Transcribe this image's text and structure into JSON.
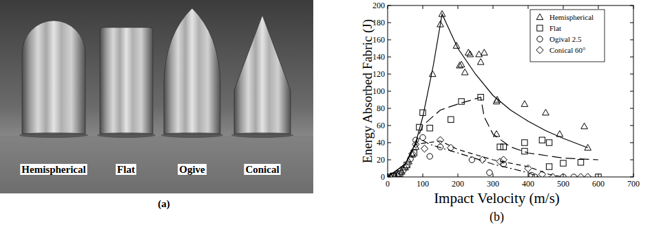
{
  "chart_data": {
    "type": "scatter",
    "x_label": "Impact Velocity (m/s)",
    "y_label": "Energy Absorbed Fabric (J)",
    "caption": "(b)",
    "xlim": [
      0,
      700
    ],
    "xticks": [
      0,
      100,
      200,
      300,
      400,
      500,
      600,
      700
    ],
    "ylim": [
      0,
      200
    ],
    "yticks": [
      0,
      20,
      40,
      60,
      80,
      100,
      120,
      140,
      160,
      180,
      200
    ],
    "grid": false,
    "legend": "upper right",
    "series": [
      {
        "name": "Hemispherical",
        "type": "scatter",
        "marker": "triangle",
        "color": "#000000",
        "x": [
          0,
          10,
          20,
          30,
          40,
          50,
          60,
          70,
          80,
          128,
          150,
          155,
          196,
          205,
          210,
          220,
          230,
          235,
          260,
          265,
          275,
          310,
          312,
          310,
          390,
          450,
          490,
          560,
          570
        ],
        "values": [
          0,
          0,
          1,
          3,
          6,
          11,
          18,
          26,
          35,
          120,
          178,
          190,
          153,
          130,
          131,
          122,
          145,
          143,
          143,
          134,
          145,
          88,
          90,
          50,
          85,
          75,
          50,
          59,
          34
        ]
      },
      {
        "name": "Flat",
        "type": "scatter",
        "marker": "square",
        "color": "#000000",
        "x": [
          15,
          35,
          55,
          75,
          90,
          100,
          120,
          180,
          210,
          265,
          320,
          330,
          390,
          390,
          440,
          460,
          460,
          500,
          550,
          600
        ],
        "values": [
          1,
          4,
          14,
          28,
          58,
          75,
          57,
          67,
          88,
          93,
          35,
          35,
          40,
          30,
          43,
          40,
          12,
          16,
          17,
          0
        ]
      },
      {
        "name": "Ogival 2.5",
        "type": "scatter",
        "marker": "circle",
        "color": "#000000",
        "x": [
          5,
          25,
          45,
          65,
          80,
          100,
          120,
          150,
          240,
          290,
          330,
          410,
          420,
          500,
          530
        ],
        "values": [
          0,
          2,
          8,
          21,
          43,
          46,
          24,
          35,
          20,
          5,
          15,
          2,
          0,
          0,
          0
        ]
      },
      {
        "name": "Conical 60°",
        "type": "scatter",
        "marker": "diamond",
        "color": "#000000",
        "x": [
          12,
          32,
          52,
          70,
          80,
          105,
          150,
          180,
          270,
          320,
          330,
          400,
          440,
          470,
          550,
          570
        ],
        "values": [
          1,
          3,
          12,
          27,
          38,
          33,
          43,
          34,
          20,
          18,
          20,
          10,
          3,
          0,
          0,
          0
        ]
      },
      {
        "type": "line",
        "line_style": "solid",
        "color": "#000000",
        "x": [
          0,
          50,
          80,
          100,
          130,
          155,
          200,
          250,
          300,
          350,
          400,
          450,
          500,
          570
        ],
        "values": [
          0,
          15,
          40,
          70,
          130,
          190,
          150,
          120,
          95,
          78,
          65,
          54,
          45,
          34
        ]
      },
      {
        "type": "line",
        "line_style": "long_dash",
        "color": "#000000",
        "x": [
          0,
          50,
          80,
          100,
          150,
          200,
          265,
          275,
          300,
          350,
          400,
          500,
          600
        ],
        "values": [
          0,
          15,
          40,
          60,
          78,
          85,
          93,
          70,
          50,
          35,
          28,
          22,
          20
        ]
      },
      {
        "type": "line",
        "line_style": "dash_dot",
        "color": "#000000",
        "x": [
          0,
          50,
          80,
          90,
          120,
          200,
          300,
          400,
          430
        ],
        "values": [
          0,
          15,
          40,
          45,
          38,
          28,
          15,
          5,
          0
        ]
      },
      {
        "type": "line",
        "line_style": "dash",
        "color": "#000000",
        "x": [
          0,
          50,
          80,
          150,
          200,
          300,
          400,
          460,
          500
        ],
        "values": [
          0,
          15,
          38,
          42,
          32,
          20,
          12,
          3,
          0
        ]
      }
    ]
  },
  "photo": {
    "labels": [
      "Hemispherical",
      "Flat",
      "Ogive",
      "Conical"
    ],
    "caption": "(a)"
  }
}
